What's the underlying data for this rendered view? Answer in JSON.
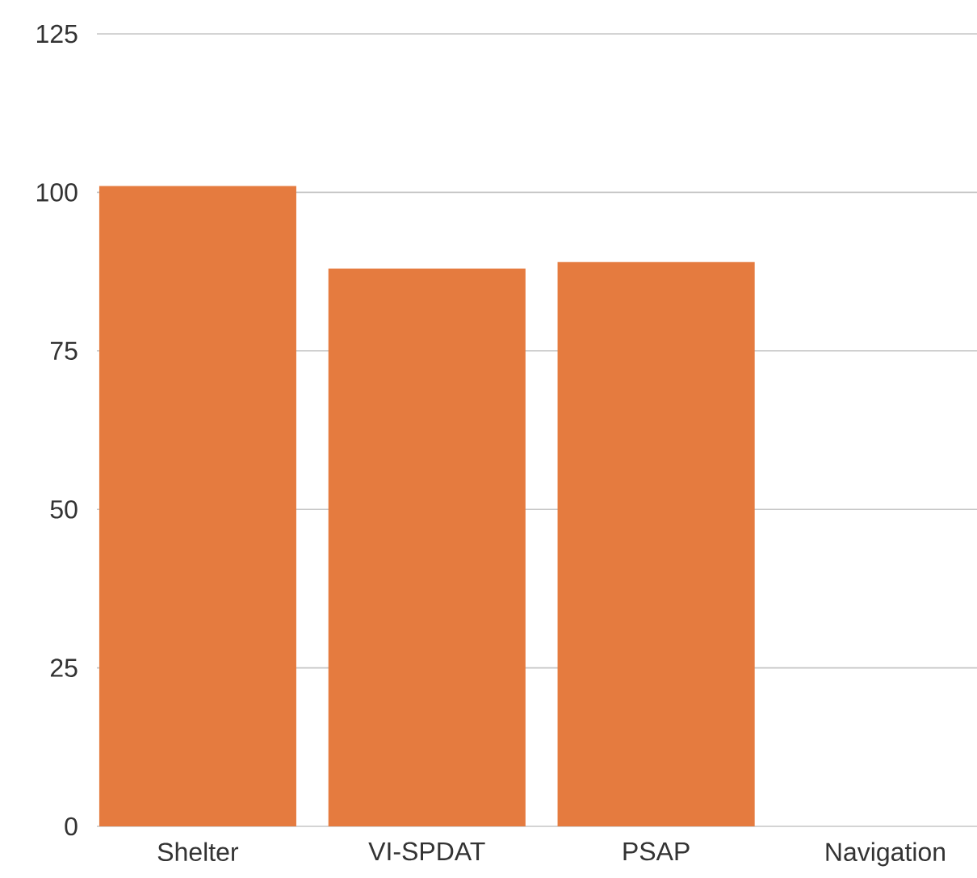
{
  "chart_data": {
    "type": "bar",
    "categories": [
      "Shelter",
      "VI-SPDAT",
      "PSAP",
      "Navigation"
    ],
    "values": [
      101,
      88,
      89,
      0
    ],
    "color": "#e57b3f",
    "ylim": [
      0,
      125
    ],
    "yticks": [
      0,
      25,
      50,
      75,
      100,
      125
    ],
    "grid": "y"
  }
}
